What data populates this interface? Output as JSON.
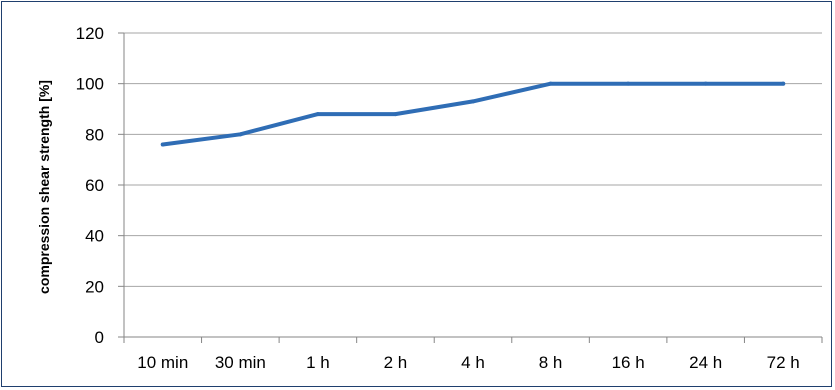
{
  "chart_data": {
    "type": "line",
    "title": "",
    "xlabel": "",
    "ylabel": "compression shear strength  [%]",
    "categories": [
      "10 min",
      "30 min",
      "1 h",
      "2 h",
      "4 h",
      "8 h",
      "16 h",
      "24 h",
      "72 h"
    ],
    "y_ticks": [
      "0",
      "20",
      "40",
      "60",
      "80",
      "100",
      "120"
    ],
    "ylim": [
      0,
      120
    ],
    "grid": "horizontal",
    "legend": "none",
    "series": [
      {
        "values": [
          76,
          80,
          88,
          88,
          93,
          100,
          100,
          100,
          100
        ]
      }
    ],
    "colors": {
      "line": "#2f6db5",
      "axis": "#868686",
      "grid": "#a6a6a6",
      "frame": "#1f3f6e"
    }
  }
}
